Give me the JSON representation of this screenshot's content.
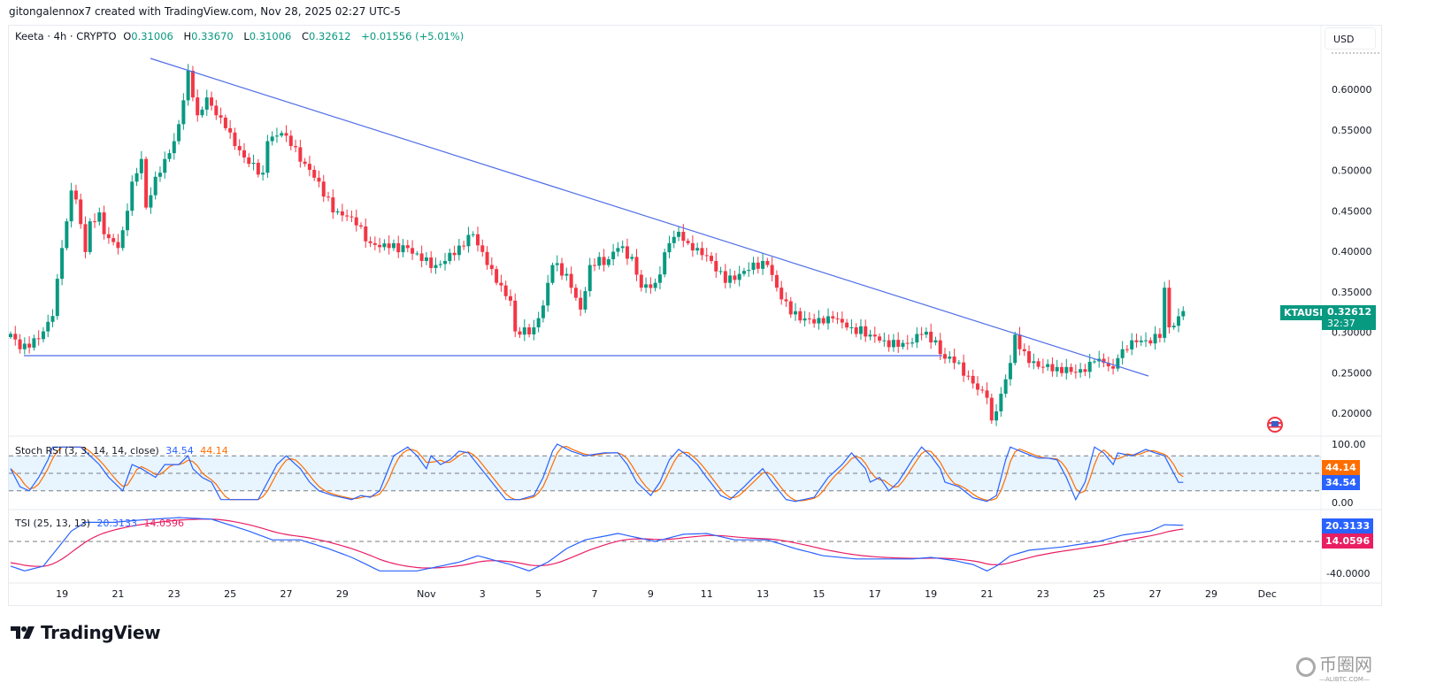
{
  "header": {
    "credit": "gitongalennox7 created with TradingView.com, Nov 28, 2025 02:27 UTC-5",
    "symbol": "Keeta · 4h · CRYPTO",
    "open_label": "O",
    "open": "0.31006",
    "high_label": "H",
    "high": "0.33670",
    "low_label": "L",
    "low": "0.31006",
    "close_label": "C",
    "close": "0.32612",
    "change": "+0.01556 (+5.01%)"
  },
  "currency_button": "USD",
  "price_tag": {
    "symbol": "KTAUSD",
    "price": "0.32612",
    "countdown": "32:37"
  },
  "stoch": {
    "title": "Stoch RSI (3, 3, 14, 14, close)",
    "k": "34.54",
    "d": "44.14",
    "axis": [
      "100.00",
      "0.00"
    ]
  },
  "tsi": {
    "title": "TSI (25, 13, 13)",
    "tsi": "20.3133",
    "signal": "14.0596",
    "axis": [
      "-40.0000"
    ]
  },
  "logo": "TradingView",
  "watermark": {
    "cn": "币圈网",
    "en": "—ALIBTC.COM—"
  },
  "colors": {
    "up": "#089981",
    "down": "#f23645",
    "trend": "#4f6ee8",
    "k": "#2962ff",
    "d": "#ff6d00",
    "tsi": "#2962ff",
    "signal": "#e91e63"
  },
  "chart_data": {
    "type": "candlestick",
    "title": "Keeta · 4h · CRYPTO (KTAUSD)",
    "interval": "4h",
    "ylim": [
      0.175,
      0.655
    ],
    "yticks": [
      "0.60000",
      "0.55000",
      "0.50000",
      "0.45000",
      "0.40000",
      "0.35000",
      "0.30000",
      "0.25000",
      "0.20000"
    ],
    "ytick_values": [
      0.6,
      0.55,
      0.5,
      0.45,
      0.4,
      0.35,
      0.3,
      0.25,
      0.2
    ],
    "xticks": [
      "19",
      "21",
      "23",
      "25",
      "27",
      "29",
      "Nov",
      "3",
      "5",
      "7",
      "9",
      "11",
      "13",
      "15",
      "17",
      "19",
      "21",
      "23",
      "25",
      "27",
      "29",
      "Dec"
    ],
    "xtick_candle_index": [
      11,
      23,
      35,
      47,
      59,
      71,
      89,
      101,
      113,
      125,
      137,
      149,
      161,
      173,
      185,
      197,
      209,
      221,
      233,
      245,
      257,
      269
    ],
    "candle_count": 252,
    "close_anchors": [
      [
        0,
        0.298
      ],
      [
        2,
        0.279
      ],
      [
        4,
        0.281
      ],
      [
        7,
        0.301
      ],
      [
        9,
        0.32
      ],
      [
        10,
        0.366
      ],
      [
        11,
        0.404
      ],
      [
        12,
        0.437
      ],
      [
        13,
        0.475
      ],
      [
        14,
        0.464
      ],
      [
        16,
        0.399
      ],
      [
        17,
        0.437
      ],
      [
        19,
        0.448
      ],
      [
        20,
        0.421
      ],
      [
        23,
        0.404
      ],
      [
        24,
        0.426
      ],
      [
        26,
        0.486
      ],
      [
        28,
        0.514
      ],
      [
        29,
        0.454
      ],
      [
        31,
        0.492
      ],
      [
        33,
        0.514
      ],
      [
        35,
        0.536
      ],
      [
        36,
        0.557
      ],
      [
        38,
        0.623
      ],
      [
        39,
        0.59
      ],
      [
        40,
        0.568
      ],
      [
        42,
        0.59
      ],
      [
        44,
        0.568
      ],
      [
        46,
        0.552
      ],
      [
        48,
        0.53
      ],
      [
        51,
        0.508
      ],
      [
        54,
        0.497
      ],
      [
        55,
        0.536
      ],
      [
        58,
        0.546
      ],
      [
        60,
        0.53
      ],
      [
        63,
        0.508
      ],
      [
        66,
        0.486
      ],
      [
        69,
        0.448
      ],
      [
        72,
        0.443
      ],
      [
        74,
        0.432
      ],
      [
        77,
        0.41
      ],
      [
        81,
        0.404
      ],
      [
        85,
        0.404
      ],
      [
        88,
        0.388
      ],
      [
        91,
        0.383
      ],
      [
        93,
        0.388
      ],
      [
        96,
        0.407
      ],
      [
        99,
        0.421
      ],
      [
        102,
        0.383
      ],
      [
        104,
        0.361
      ],
      [
        107,
        0.339
      ],
      [
        108,
        0.301
      ],
      [
        109,
        0.297
      ],
      [
        112,
        0.306
      ],
      [
        114,
        0.333
      ],
      [
        116,
        0.383
      ],
      [
        119,
        0.372
      ],
      [
        122,
        0.328
      ],
      [
        124,
        0.383
      ],
      [
        126,
        0.393
      ],
      [
        127,
        0.383
      ],
      [
        130,
        0.404
      ],
      [
        133,
        0.393
      ],
      [
        135,
        0.355
      ],
      [
        138,
        0.361
      ],
      [
        141,
        0.41
      ],
      [
        143,
        0.424
      ],
      [
        145,
        0.41
      ],
      [
        147,
        0.404
      ],
      [
        150,
        0.388
      ],
      [
        153,
        0.361
      ],
      [
        156,
        0.372
      ],
      [
        158,
        0.377
      ],
      [
        161,
        0.388
      ],
      [
        162,
        0.383
      ],
      [
        164,
        0.355
      ],
      [
        167,
        0.322
      ],
      [
        170,
        0.317
      ],
      [
        174,
        0.311
      ],
      [
        176,
        0.317
      ],
      [
        180,
        0.306
      ],
      [
        184,
        0.297
      ],
      [
        187,
        0.29
      ],
      [
        190,
        0.282
      ],
      [
        192,
        0.286
      ],
      [
        195,
        0.297
      ],
      [
        198,
        0.29
      ],
      [
        199,
        0.273
      ],
      [
        202,
        0.262
      ],
      [
        205,
        0.246
      ],
      [
        207,
        0.229
      ],
      [
        209,
        0.219
      ],
      [
        210,
        0.191
      ],
      [
        212,
        0.224
      ],
      [
        214,
        0.262
      ],
      [
        215,
        0.297
      ],
      [
        216,
        0.279
      ],
      [
        218,
        0.262
      ],
      [
        221,
        0.257
      ],
      [
        224,
        0.257
      ],
      [
        227,
        0.251
      ],
      [
        230,
        0.251
      ],
      [
        232,
        0.264
      ],
      [
        234,
        0.262
      ],
      [
        236,
        0.255
      ],
      [
        237,
        0.268
      ],
      [
        238,
        0.279
      ],
      [
        240,
        0.29
      ],
      [
        243,
        0.29
      ],
      [
        246,
        0.293
      ],
      [
        247,
        0.355
      ],
      [
        248,
        0.306
      ],
      [
        249,
        0.308
      ],
      [
        251,
        0.32612
      ]
    ],
    "trendlines": [
      {
        "name": "descending resistance",
        "from": [
          30,
          0.632
        ],
        "to": [
          243,
          0.25
        ]
      },
      {
        "name": "horizontal support",
        "from": [
          3,
          0.272
        ],
        "to": [
          199,
          0.272
        ]
      }
    ],
    "stoch_rsi": {
      "bands": [
        80,
        50,
        20
      ],
      "ylim": [
        0,
        100
      ],
      "k_anchors": [
        [
          0,
          58
        ],
        [
          2,
          27
        ],
        [
          4,
          20
        ],
        [
          6,
          43
        ],
        [
          8,
          73
        ],
        [
          9,
          95
        ],
        [
          15,
          95
        ],
        [
          17,
          80
        ],
        [
          19,
          65
        ],
        [
          21,
          43
        ],
        [
          24,
          20
        ],
        [
          26,
          65
        ],
        [
          28,
          58
        ],
        [
          31,
          43
        ],
        [
          33,
          65
        ],
        [
          36,
          65
        ],
        [
          38,
          80
        ],
        [
          39,
          58
        ],
        [
          41,
          43
        ],
        [
          43,
          35
        ],
        [
          45,
          5
        ],
        [
          53,
          5
        ],
        [
          55,
          35
        ],
        [
          57,
          65
        ],
        [
          59,
          80
        ],
        [
          62,
          58
        ],
        [
          64,
          35
        ],
        [
          66,
          20
        ],
        [
          69,
          12
        ],
        [
          73,
          5
        ],
        [
          75,
          12
        ],
        [
          77,
          9
        ],
        [
          79,
          20
        ],
        [
          82,
          80
        ],
        [
          85,
          95
        ],
        [
          87,
          80
        ],
        [
          89,
          58
        ],
        [
          90,
          80
        ],
        [
          92,
          65
        ],
        [
          94,
          73
        ],
        [
          96,
          88
        ],
        [
          98,
          85
        ],
        [
          100,
          65
        ],
        [
          103,
          35
        ],
        [
          106,
          5
        ],
        [
          109,
          5
        ],
        [
          112,
          12
        ],
        [
          114,
          43
        ],
        [
          116,
          88
        ],
        [
          117,
          100
        ],
        [
          120,
          88
        ],
        [
          123,
          80
        ],
        [
          127,
          85
        ],
        [
          130,
          85
        ],
        [
          132,
          65
        ],
        [
          134,
          35
        ],
        [
          137,
          12
        ],
        [
          139,
          35
        ],
        [
          141,
          73
        ],
        [
          143,
          91
        ],
        [
          145,
          80
        ],
        [
          147,
          65
        ],
        [
          149,
          43
        ],
        [
          152,
          12
        ],
        [
          154,
          5
        ],
        [
          157,
          27
        ],
        [
          159,
          43
        ],
        [
          161,
          58
        ],
        [
          163,
          35
        ],
        [
          166,
          5
        ],
        [
          168,
          2
        ],
        [
          172,
          9
        ],
        [
          175,
          43
        ],
        [
          178,
          65
        ],
        [
          180,
          85
        ],
        [
          183,
          58
        ],
        [
          184,
          35
        ],
        [
          186,
          43
        ],
        [
          188,
          20
        ],
        [
          190,
          35
        ],
        [
          193,
          73
        ],
        [
          195,
          95
        ],
        [
          197,
          80
        ],
        [
          199,
          58
        ],
        [
          200,
          35
        ],
        [
          203,
          27
        ],
        [
          206,
          8
        ],
        [
          209,
          2
        ],
        [
          211,
          12
        ],
        [
          213,
          73
        ],
        [
          214,
          95
        ],
        [
          217,
          85
        ],
        [
          220,
          76
        ],
        [
          222,
          76
        ],
        [
          224,
          73
        ],
        [
          226,
          43
        ],
        [
          228,
          5
        ],
        [
          230,
          35
        ],
        [
          232,
          95
        ],
        [
          234,
          85
        ],
        [
          236,
          65
        ],
        [
          237,
          85
        ],
        [
          240,
          80
        ],
        [
          243,
          91
        ],
        [
          245,
          85
        ],
        [
          247,
          80
        ],
        [
          250,
          34.54
        ]
      ]
    },
    "tsi_series": {
      "zero_line": 0,
      "ylim": [
        -45,
        40
      ],
      "tsi_anchors": [
        [
          0,
          -31
        ],
        [
          3,
          -37
        ],
        [
          7,
          -31
        ],
        [
          10,
          -9
        ],
        [
          13,
          13
        ],
        [
          16,
          24
        ],
        [
          22,
          24
        ],
        [
          28,
          27
        ],
        [
          36,
          30
        ],
        [
          43,
          28
        ],
        [
          51,
          13
        ],
        [
          56,
          2
        ],
        [
          62,
          2
        ],
        [
          68,
          -9
        ],
        [
          73,
          -20
        ],
        [
          79,
          -37
        ],
        [
          87,
          -37
        ],
        [
          92,
          -31
        ],
        [
          96,
          -26
        ],
        [
          100,
          -18
        ],
        [
          107,
          -29
        ],
        [
          111,
          -37
        ],
        [
          115,
          -26
        ],
        [
          119,
          -9
        ],
        [
          123,
          2
        ],
        [
          130,
          10
        ],
        [
          138,
          0
        ],
        [
          144,
          9
        ],
        [
          149,
          10
        ],
        [
          155,
          2
        ],
        [
          162,
          2
        ],
        [
          168,
          -9
        ],
        [
          174,
          -18
        ],
        [
          181,
          -22
        ],
        [
          187,
          -22
        ],
        [
          193,
          -22
        ],
        [
          197,
          -20
        ],
        [
          202,
          -24
        ],
        [
          206,
          -29
        ],
        [
          209,
          -37
        ],
        [
          211,
          -31
        ],
        [
          214,
          -18
        ],
        [
          218,
          -11
        ],
        [
          225,
          -7
        ],
        [
          233,
          0
        ],
        [
          238,
          8
        ],
        [
          244,
          13
        ],
        [
          247,
          21
        ],
        [
          251,
          20.31
        ]
      ],
      "signal_initial": -26,
      "signal_period": 13
    }
  }
}
